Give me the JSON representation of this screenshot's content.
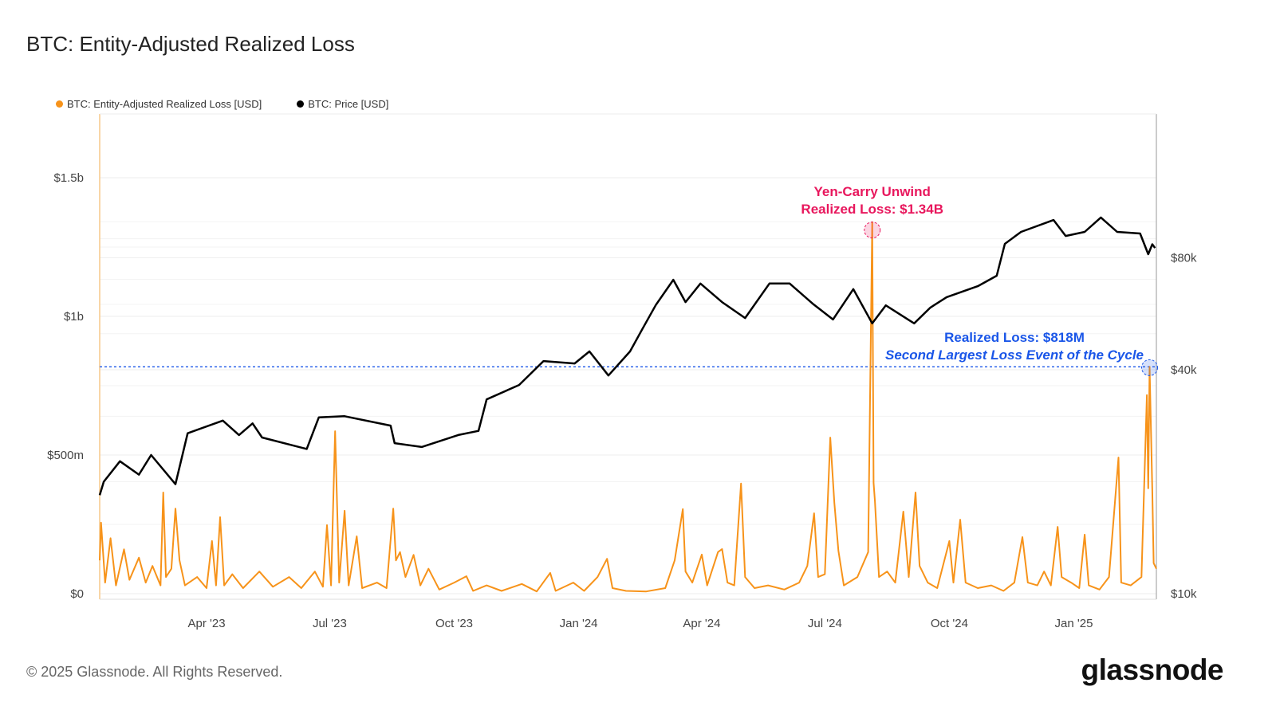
{
  "title": "BTC: Entity-Adjusted Realized Loss",
  "legend": [
    {
      "label": "BTC: Entity-Adjusted Realized Loss [USD]",
      "color": "#f7931a"
    },
    {
      "label": "BTC: Price [USD]",
      "color": "#000000"
    }
  ],
  "footer": {
    "copyright": "© 2025 Glassnode. All Rights Reserved.",
    "logo": "glassnode"
  },
  "chart_data": {
    "type": "line",
    "title": "BTC: Entity-Adjusted Realized Loss",
    "x_range": [
      "2023-01-12",
      "2025-03-03"
    ],
    "x_ticks": [
      {
        "date": "2023-04-01",
        "label": "Apr '23"
      },
      {
        "date": "2023-07-01",
        "label": "Jul '23"
      },
      {
        "date": "2023-10-01",
        "label": "Oct '23"
      },
      {
        "date": "2024-01-01",
        "label": "Jan '24"
      },
      {
        "date": "2024-04-01",
        "label": "Apr '24"
      },
      {
        "date": "2024-07-01",
        "label": "Jul '24"
      },
      {
        "date": "2024-10-01",
        "label": "Oct '24"
      },
      {
        "date": "2025-01-01",
        "label": "Jan '25"
      }
    ],
    "y_left": {
      "unit": "USD millions",
      "range": [
        0,
        1750
      ],
      "scale": "linear",
      "ticks": [
        {
          "value": 0,
          "label": "$0"
        },
        {
          "value": 500,
          "label": "$500m"
        },
        {
          "value": 1000,
          "label": "$1b"
        },
        {
          "value": 1500,
          "label": "$1.5b"
        }
      ]
    },
    "y_right": {
      "unit": "USD",
      "scale": "log",
      "range": [
        10000,
        135000
      ],
      "ticks": [
        {
          "value": 10000,
          "label": "$10k"
        },
        {
          "value": 40000,
          "label": "$40k"
        },
        {
          "value": 80000,
          "label": "$80k"
        }
      ]
    },
    "grid": true,
    "legend_position": "top-left",
    "series": [
      {
        "name": "BTC: Entity-Adjusted Realized Loss [USD]",
        "axis": "left",
        "color": "#f7931a",
        "points": [
          [
            "2023-01-12",
            120
          ],
          [
            "2023-01-13",
            256
          ],
          [
            "2023-01-16",
            40
          ],
          [
            "2023-01-20",
            200
          ],
          [
            "2023-01-24",
            30
          ],
          [
            "2023-01-30",
            160
          ],
          [
            "2023-02-03",
            50
          ],
          [
            "2023-02-10",
            130
          ],
          [
            "2023-02-15",
            40
          ],
          [
            "2023-02-20",
            100
          ],
          [
            "2023-02-26",
            30
          ],
          [
            "2023-02-28",
            365
          ],
          [
            "2023-03-02",
            60
          ],
          [
            "2023-03-06",
            90
          ],
          [
            "2023-03-09",
            307
          ],
          [
            "2023-03-12",
            120
          ],
          [
            "2023-03-16",
            30
          ],
          [
            "2023-03-25",
            60
          ],
          [
            "2023-04-01",
            20
          ],
          [
            "2023-04-05",
            190
          ],
          [
            "2023-04-08",
            30
          ],
          [
            "2023-04-11",
            276
          ],
          [
            "2023-04-14",
            30
          ],
          [
            "2023-04-20",
            70
          ],
          [
            "2023-04-28",
            20
          ],
          [
            "2023-05-10",
            80
          ],
          [
            "2023-05-20",
            25
          ],
          [
            "2023-06-01",
            60
          ],
          [
            "2023-06-10",
            20
          ],
          [
            "2023-06-20",
            80
          ],
          [
            "2023-06-26",
            25
          ],
          [
            "2023-06-29",
            247
          ],
          [
            "2023-07-02",
            30
          ],
          [
            "2023-07-05",
            586
          ],
          [
            "2023-07-08",
            40
          ],
          [
            "2023-07-12",
            299
          ],
          [
            "2023-07-15",
            30
          ],
          [
            "2023-07-21",
            207
          ],
          [
            "2023-07-25",
            20
          ],
          [
            "2023-08-05",
            40
          ],
          [
            "2023-08-12",
            20
          ],
          [
            "2023-08-17",
            307
          ],
          [
            "2023-08-19",
            120
          ],
          [
            "2023-08-22",
            150
          ],
          [
            "2023-08-26",
            60
          ],
          [
            "2023-09-01",
            140
          ],
          [
            "2023-09-06",
            30
          ],
          [
            "2023-09-12",
            90
          ],
          [
            "2023-09-20",
            15
          ],
          [
            "2023-10-01",
            40
          ],
          [
            "2023-10-10",
            63
          ],
          [
            "2023-10-15",
            10
          ],
          [
            "2023-10-25",
            30
          ],
          [
            "2023-11-05",
            10
          ],
          [
            "2023-11-20",
            35
          ],
          [
            "2023-12-01",
            8
          ],
          [
            "2023-12-11",
            75
          ],
          [
            "2023-12-15",
            10
          ],
          [
            "2023-12-28",
            40
          ],
          [
            "2024-01-05",
            10
          ],
          [
            "2024-01-15",
            60
          ],
          [
            "2024-01-22",
            126
          ],
          [
            "2024-01-26",
            20
          ],
          [
            "2024-02-05",
            10
          ],
          [
            "2024-02-20",
            8
          ],
          [
            "2024-03-05",
            20
          ],
          [
            "2024-03-12",
            120
          ],
          [
            "2024-03-18",
            305
          ],
          [
            "2024-03-20",
            80
          ],
          [
            "2024-03-25",
            40
          ],
          [
            "2024-04-01",
            141
          ],
          [
            "2024-04-05",
            30
          ],
          [
            "2024-04-13",
            150
          ],
          [
            "2024-04-16",
            161
          ],
          [
            "2024-04-20",
            40
          ],
          [
            "2024-04-25",
            30
          ],
          [
            "2024-04-30",
            397
          ],
          [
            "2024-05-03",
            60
          ],
          [
            "2024-05-10",
            20
          ],
          [
            "2024-05-20",
            30
          ],
          [
            "2024-06-01",
            15
          ],
          [
            "2024-06-12",
            40
          ],
          [
            "2024-06-18",
            100
          ],
          [
            "2024-06-23",
            290
          ],
          [
            "2024-06-26",
            60
          ],
          [
            "2024-07-01",
            70
          ],
          [
            "2024-07-05",
            563
          ],
          [
            "2024-07-08",
            328
          ],
          [
            "2024-07-11",
            155
          ],
          [
            "2024-07-15",
            30
          ],
          [
            "2024-07-25",
            60
          ],
          [
            "2024-08-02",
            150
          ],
          [
            "2024-08-05",
            1340
          ],
          [
            "2024-08-06",
            400
          ],
          [
            "2024-08-07",
            333
          ],
          [
            "2024-08-10",
            60
          ],
          [
            "2024-08-16",
            80
          ],
          [
            "2024-08-22",
            40
          ],
          [
            "2024-08-28",
            296
          ],
          [
            "2024-09-01",
            60
          ],
          [
            "2024-09-06",
            365
          ],
          [
            "2024-09-09",
            100
          ],
          [
            "2024-09-15",
            40
          ],
          [
            "2024-09-22",
            20
          ],
          [
            "2024-10-01",
            190
          ],
          [
            "2024-10-04",
            40
          ],
          [
            "2024-10-09",
            267
          ],
          [
            "2024-10-13",
            40
          ],
          [
            "2024-10-22",
            20
          ],
          [
            "2024-11-01",
            30
          ],
          [
            "2024-11-10",
            10
          ],
          [
            "2024-11-18",
            40
          ],
          [
            "2024-11-24",
            204
          ],
          [
            "2024-11-28",
            40
          ],
          [
            "2024-12-05",
            30
          ],
          [
            "2024-12-10",
            80
          ],
          [
            "2024-12-15",
            30
          ],
          [
            "2024-12-20",
            241
          ],
          [
            "2024-12-23",
            60
          ],
          [
            "2024-12-30",
            40
          ],
          [
            "2025-01-05",
            20
          ],
          [
            "2025-01-09",
            213
          ],
          [
            "2025-01-12",
            30
          ],
          [
            "2025-01-20",
            15
          ],
          [
            "2025-01-27",
            60
          ],
          [
            "2025-02-03",
            491
          ],
          [
            "2025-02-05",
            40
          ],
          [
            "2025-02-12",
            30
          ],
          [
            "2025-02-20",
            60
          ],
          [
            "2025-02-24",
            716
          ],
          [
            "2025-02-25",
            380
          ],
          [
            "2025-02-26",
            818
          ],
          [
            "2025-02-28",
            370
          ],
          [
            "2025-03-01",
            110
          ],
          [
            "2025-03-03",
            90
          ]
        ]
      },
      {
        "name": "BTC: Price [USD]",
        "axis": "right",
        "color": "#000000",
        "points": [
          [
            "2023-01-12",
            18400
          ],
          [
            "2023-01-15",
            20000
          ],
          [
            "2023-01-27",
            22700
          ],
          [
            "2023-02-10",
            20900
          ],
          [
            "2023-02-19",
            23600
          ],
          [
            "2023-03-09",
            19700
          ],
          [
            "2023-03-18",
            27000
          ],
          [
            "2023-04-13",
            29200
          ],
          [
            "2023-04-25",
            26700
          ],
          [
            "2023-05-05",
            28700
          ],
          [
            "2023-05-12",
            26300
          ],
          [
            "2023-06-14",
            24500
          ],
          [
            "2023-06-23",
            29800
          ],
          [
            "2023-07-12",
            30000
          ],
          [
            "2023-08-15",
            28300
          ],
          [
            "2023-08-18",
            25400
          ],
          [
            "2023-09-07",
            24800
          ],
          [
            "2023-10-04",
            26700
          ],
          [
            "2023-10-19",
            27400
          ],
          [
            "2023-10-25",
            33300
          ],
          [
            "2023-11-18",
            36400
          ],
          [
            "2023-12-06",
            42200
          ],
          [
            "2023-12-29",
            41600
          ],
          [
            "2024-01-09",
            44800
          ],
          [
            "2024-01-23",
            38600
          ],
          [
            "2024-02-08",
            44800
          ],
          [
            "2024-02-17",
            51400
          ],
          [
            "2024-02-27",
            59700
          ],
          [
            "2024-03-11",
            69800
          ],
          [
            "2024-03-20",
            60800
          ],
          [
            "2024-03-31",
            68200
          ],
          [
            "2024-04-16",
            60800
          ],
          [
            "2024-05-03",
            55100
          ],
          [
            "2024-05-21",
            68200
          ],
          [
            "2024-06-05",
            68200
          ],
          [
            "2024-06-22",
            60200
          ],
          [
            "2024-07-07",
            54600
          ],
          [
            "2024-07-22",
            65900
          ],
          [
            "2024-08-05",
            53300
          ],
          [
            "2024-08-15",
            59600
          ],
          [
            "2024-09-05",
            53300
          ],
          [
            "2024-09-17",
            58800
          ],
          [
            "2024-09-29",
            62700
          ],
          [
            "2024-10-22",
            67100
          ],
          [
            "2024-11-05",
            71600
          ],
          [
            "2024-11-11",
            87200
          ],
          [
            "2024-11-23",
            93900
          ],
          [
            "2024-12-17",
            101100
          ],
          [
            "2024-12-26",
            91600
          ],
          [
            "2025-01-09",
            93900
          ],
          [
            "2025-01-21",
            102700
          ],
          [
            "2025-02-02",
            93900
          ],
          [
            "2025-02-19",
            93000
          ],
          [
            "2025-02-25",
            81800
          ],
          [
            "2025-02-28",
            87000
          ],
          [
            "2025-03-02",
            85000
          ]
        ]
      }
    ],
    "reference_line": {
      "value": 818,
      "axis": "left",
      "style": "dashed",
      "color": "#1a56e8"
    },
    "annotations": [
      {
        "date": "2024-08-05",
        "value": 1340,
        "color": "#e8175d",
        "lines": [
          "Yen-Carry Unwind",
          "Realized Loss: $1.34B"
        ]
      },
      {
        "date": "2025-02-26",
        "value": 818,
        "color": "#1a56e8",
        "lines": [
          "Realized Loss: $818M",
          "Second Largest Loss Event of the Cycle"
        ]
      }
    ]
  }
}
